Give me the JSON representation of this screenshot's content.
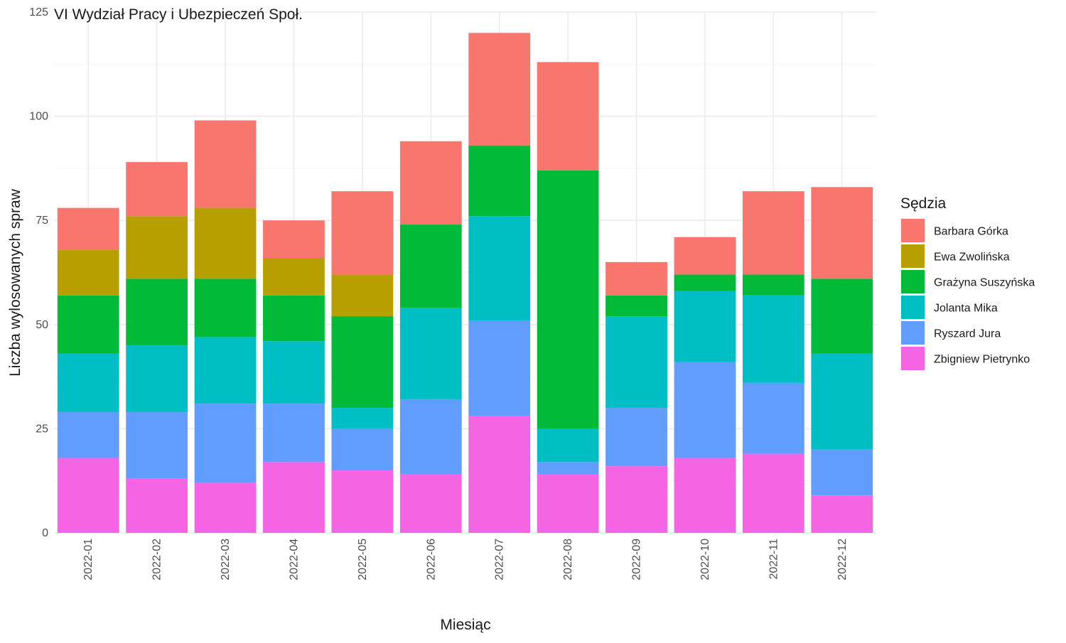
{
  "chart_data": {
    "type": "bar",
    "stacked": true,
    "title": "VI Wydział Pracy i Ubezpieczeń Społ.",
    "xlabel": "Miesiąc",
    "ylabel": "Liczba wylosowanych spraw",
    "ylim": [
      0,
      125
    ],
    "yticks": [
      0,
      25,
      50,
      75,
      100,
      125
    ],
    "grid": true,
    "legend_position": "right",
    "legend_title": "Sędzia",
    "categories": [
      "2022-01",
      "2022-02",
      "2022-03",
      "2022-04",
      "2022-05",
      "2022-06",
      "2022-07",
      "2022-08",
      "2022-09",
      "2022-10",
      "2022-11",
      "2022-12"
    ],
    "stack_order_bottom_to_top": [
      "Zbigniew Pietrynko",
      "Ryszard Jura",
      "Jolanta Mika",
      "Grażyna Suszyńska",
      "Ewa Zwolińska",
      "Barbara Górka"
    ],
    "series": [
      {
        "name": "Barbara Górka",
        "color": "#F8766D",
        "values": [
          10,
          13,
          21,
          9,
          20,
          20,
          27,
          26,
          8,
          9,
          20,
          22
        ]
      },
      {
        "name": "Ewa Zwolińska",
        "color": "#B79F00",
        "values": [
          11,
          15,
          17,
          9,
          10,
          0,
          0,
          0,
          0,
          0,
          0,
          0
        ]
      },
      {
        "name": "Grażyna Suszyńska",
        "color": "#00BA38",
        "values": [
          14,
          16,
          14,
          11,
          22,
          20,
          17,
          62,
          5,
          4,
          5,
          18
        ]
      },
      {
        "name": "Jolanta Mika",
        "color": "#00BFC4",
        "values": [
          14,
          16,
          16,
          15,
          5,
          22,
          25,
          8,
          22,
          17,
          21,
          23
        ]
      },
      {
        "name": "Ryszard Jura",
        "color": "#619CFF",
        "values": [
          11,
          16,
          19,
          14,
          10,
          18,
          23,
          3,
          14,
          23,
          17,
          11
        ]
      },
      {
        "name": "Zbigniew Pietrynko",
        "color": "#F564E3",
        "values": [
          18,
          13,
          12,
          17,
          15,
          14,
          28,
          14,
          16,
          18,
          19,
          9
        ]
      }
    ]
  }
}
